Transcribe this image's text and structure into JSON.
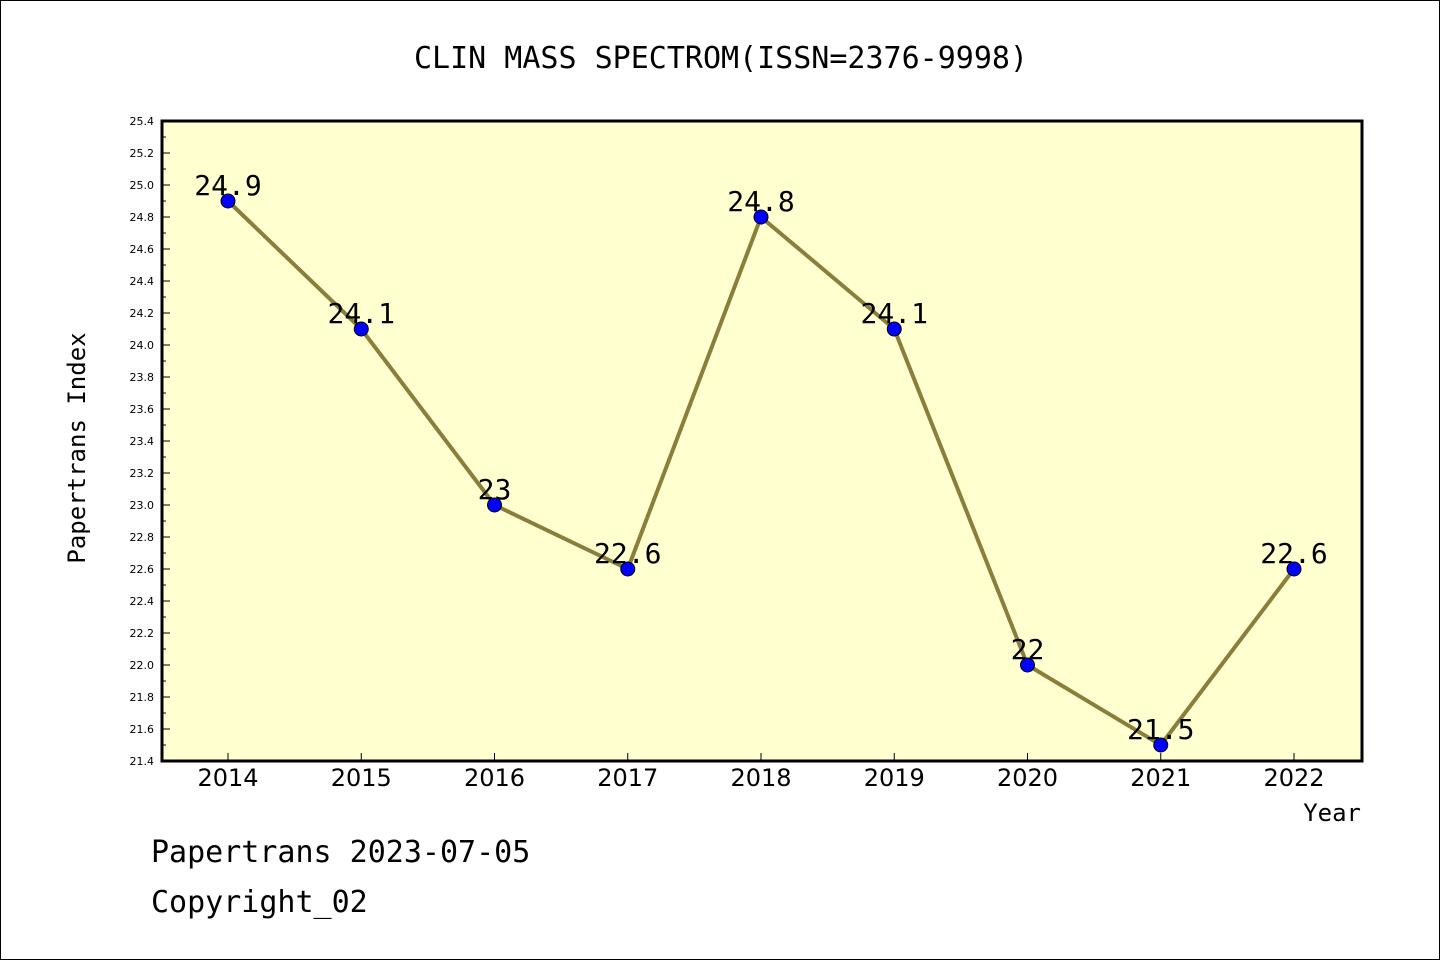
{
  "chart_data": {
    "type": "line",
    "title": "CLIN MASS SPECTROM(ISSN=2376-9998)",
    "xlabel": "Year",
    "ylabel": "Papertrans Index",
    "categories": [
      "2014",
      "2015",
      "2016",
      "2017",
      "2018",
      "2019",
      "2020",
      "2021",
      "2022"
    ],
    "series": [
      {
        "values": [
          24.9,
          24.1,
          23.0,
          22.6,
          24.8,
          24.1,
          22.0,
          21.5,
          22.6
        ],
        "data_labels": [
          "24.9",
          "24.1",
          "23",
          "22.6",
          "24.8",
          "24.1",
          "22",
          "21.5",
          "22.6"
        ]
      }
    ],
    "ylim": [
      21.4,
      25.4
    ],
    "yticks": [
      "21.4",
      "21.6",
      "21.8",
      "22.0",
      "22.2",
      "22.4",
      "22.6",
      "22.8",
      "23.0",
      "23.2",
      "23.4",
      "23.6",
      "23.8",
      "24.0",
      "24.2",
      "24.4",
      "24.6",
      "24.8",
      "25.0",
      "25.2",
      "25.4"
    ],
    "grid": false,
    "legend": "none",
    "colors": {
      "plot_background": "#ffffd0",
      "line": "#8b7e3a",
      "marker": "#0000ff"
    }
  },
  "footer": {
    "line1": "Papertrans 2023-07-05",
    "line2": "Copyright_02"
  }
}
